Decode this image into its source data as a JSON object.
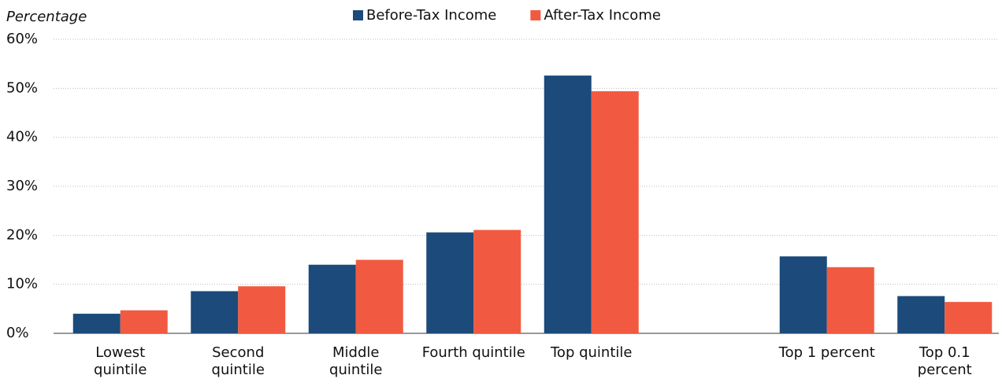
{
  "chart_data": {
    "type": "bar",
    "y_label": "Percentage",
    "categories": [
      "Lowest\nquintile",
      "Second\nquintile",
      "Middle\nquintile",
      "Fourth quintile",
      "Top quintile",
      null,
      "Top 1 percent",
      "Top 0.1\npercent"
    ],
    "series": [
      {
        "name": "Before-Tax Income",
        "color": "#1b4a7b",
        "values": [
          4.0,
          8.6,
          14.0,
          20.6,
          52.6,
          null,
          15.7,
          7.6
        ]
      },
      {
        "name": "After-Tax Income",
        "color": "#f15a40",
        "values": [
          4.7,
          9.6,
          15.0,
          21.1,
          49.4,
          null,
          13.5,
          6.4
        ]
      }
    ],
    "ylim": [
      0,
      60
    ],
    "yticks": [
      {
        "value": 0,
        "label": "0%"
      },
      {
        "value": 10,
        "label": "10%"
      },
      {
        "value": 20,
        "label": "20%"
      },
      {
        "value": 30,
        "label": "30%"
      },
      {
        "value": 40,
        "label": "40%"
      },
      {
        "value": 50,
        "label": "50%"
      },
      {
        "value": 60,
        "label": "60%"
      }
    ],
    "grid": true
  }
}
